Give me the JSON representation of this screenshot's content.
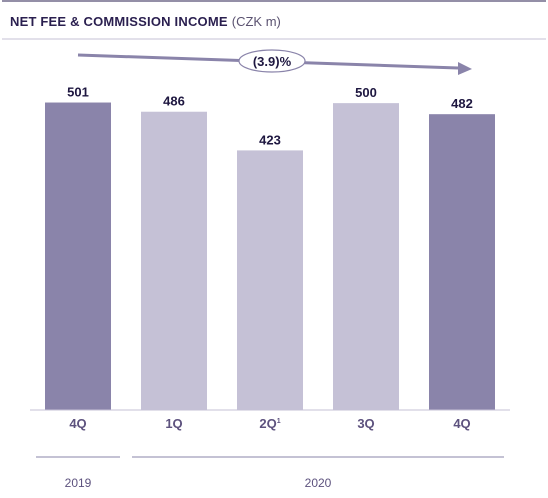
{
  "chart_data": {
    "type": "bar",
    "title": "NET FEE & COMMISSION INCOME",
    "unit": "(CZK m)",
    "categories": [
      "4Q",
      "1Q",
      "2Q",
      "3Q",
      "4Q"
    ],
    "category_footnotes": [
      "",
      "",
      "1",
      "",
      ""
    ],
    "values": [
      501,
      486,
      423,
      500,
      482
    ],
    "value_labels": [
      "501",
      "486",
      "423",
      "500",
      "482"
    ],
    "periods": [
      {
        "label": "2019",
        "span": [
          0,
          0
        ]
      },
      {
        "label": "2020",
        "span": [
          1,
          4
        ]
      }
    ],
    "highlight_color": "#8a84aa",
    "base_color": "#c5c1d6",
    "highlighted": [
      true,
      false,
      false,
      false,
      true
    ],
    "trend_label": "(3.9)%",
    "trend_color": "#8a84aa",
    "ylim": [
      0,
      510
    ],
    "grid": false,
    "legend": "none"
  }
}
